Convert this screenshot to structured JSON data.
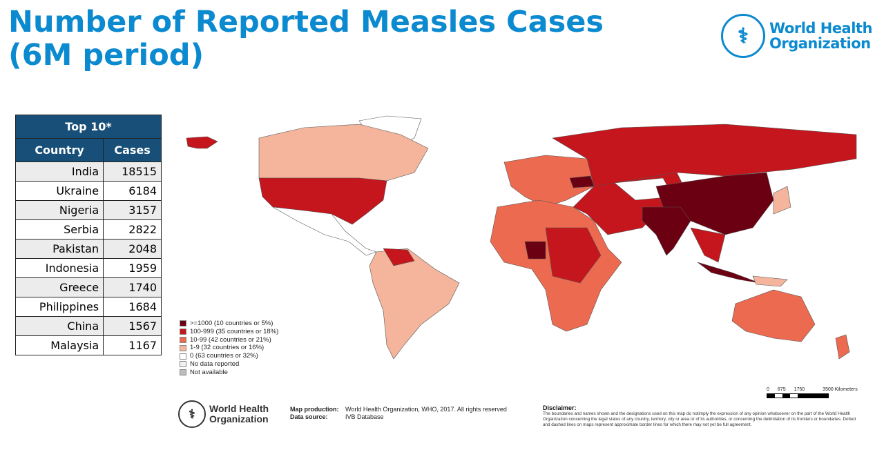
{
  "title_line1": "Number of Reported Measles Cases",
  "title_line2": "(6M period)",
  "who_logo": {
    "line1": "World Health",
    "line2": "Organization"
  },
  "table": {
    "title": "Top 10*",
    "headers": [
      "Country",
      "Cases"
    ],
    "rows": [
      {
        "country": "India",
        "cases": "18515"
      },
      {
        "country": "Ukraine",
        "cases": "6184"
      },
      {
        "country": "Nigeria",
        "cases": "3157"
      },
      {
        "country": "Serbia",
        "cases": "2822"
      },
      {
        "country": "Pakistan",
        "cases": "2048"
      },
      {
        "country": "Indonesia",
        "cases": "1959"
      },
      {
        "country": "Greece",
        "cases": "1740"
      },
      {
        "country": "Philippines",
        "cases": "1684"
      },
      {
        "country": "China",
        "cases": "1567"
      },
      {
        "country": "Malaysia",
        "cases": "1167"
      }
    ]
  },
  "legend": [
    {
      "label": ">=1000 (10 countries or 5%)",
      "color": "#6b0012"
    },
    {
      "label": "100-999 (35 countries or 18%)",
      "color": "#c4161c"
    },
    {
      "label": "10-99 (42 countries or 21%)",
      "color": "#ec6a4f"
    },
    {
      "label": "1-9 (32 countries or 16%)",
      "color": "#f4b59c"
    },
    {
      "label": "0 (63 countries or 32%)",
      "color": "#ffffff"
    },
    {
      "label": "No data reported",
      "color": "#f2f2f2"
    },
    {
      "label": "Not available",
      "color": "#bdbdbd"
    }
  ],
  "scale": {
    "ticks": [
      "0",
      "875",
      "1750",
      "3500 Kilometers"
    ]
  },
  "footer": {
    "map_production_label": "Map production:",
    "map_production_value": "World Health Organization, WHO, 2017. All rights reserved",
    "data_source_label": "Data source:",
    "data_source_value": "IVB Database",
    "disclaimer_title": "Disclaimer:",
    "disclaimer_text": "The boundaries and names shown and the designations used on this map do notimply the expression of any opinion whatsoever on the part of the World Health Organization concerning the legal status of any country, territory, city or area or of its authorities, or concerning the delimitation of its frontiers or boundaries. Dotted and dashed lines on maps represent approximate border lines for which there may not yet be full agreement."
  }
}
